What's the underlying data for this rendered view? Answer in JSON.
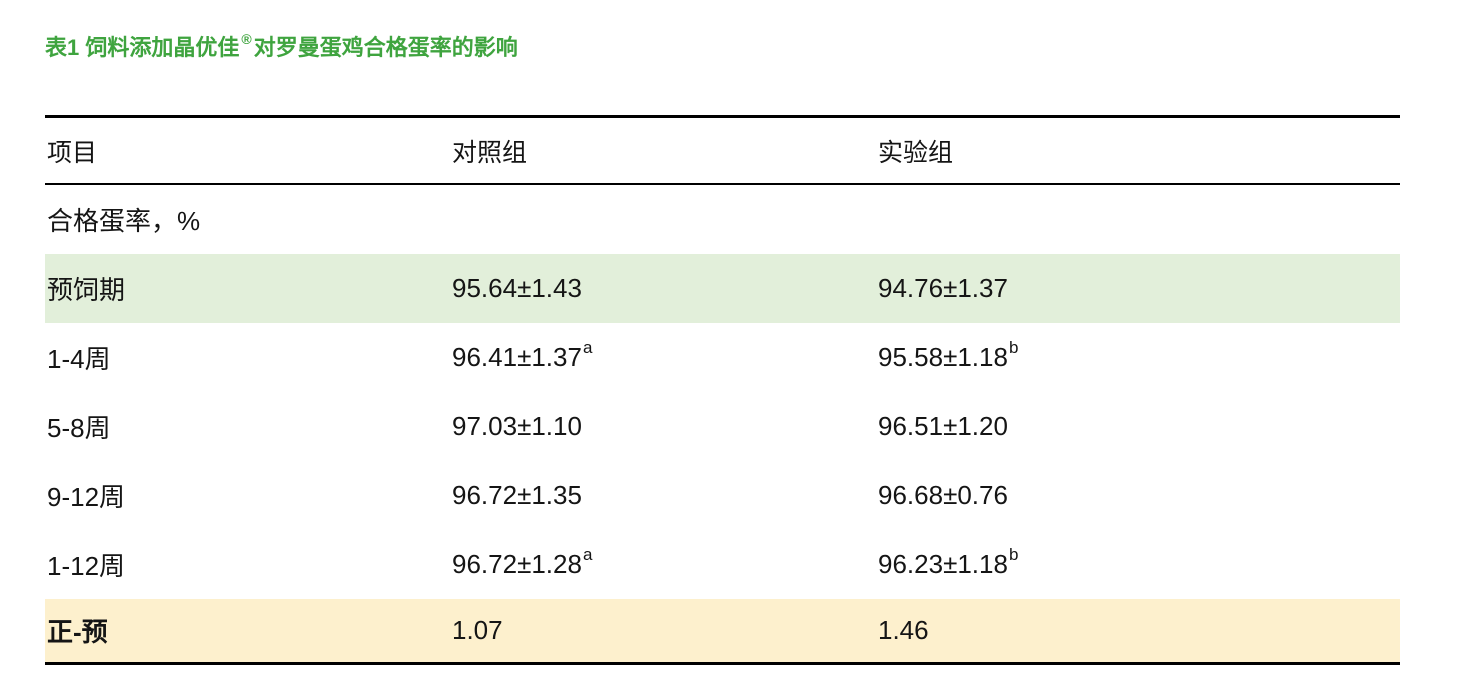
{
  "page": {
    "background": "#ffffff"
  },
  "title": {
    "text_before_mark": "表1 饲料添加晶优佳",
    "registered_mark": "®",
    "text_after_mark": "对罗曼蛋鸡合格蛋率的影响",
    "color": "#3fa43f"
  },
  "table": {
    "columns": [
      {
        "label": "项目"
      },
      {
        "label": "对照组"
      },
      {
        "label": "实验组"
      }
    ],
    "rows": [
      {
        "item": "合格蛋率，%",
        "control": "",
        "control_sup": "",
        "experiment": "",
        "experiment_sup": "",
        "highlight": "none"
      },
      {
        "item": "预饲期",
        "control": "95.64±1.43",
        "control_sup": "",
        "experiment": "94.76±1.37",
        "experiment_sup": "",
        "highlight": "green"
      },
      {
        "item": "1-4周",
        "control": "96.41±1.37",
        "control_sup": "a",
        "experiment": "95.58±1.18",
        "experiment_sup": "b",
        "highlight": "none"
      },
      {
        "item": "5-8周",
        "control": "97.03±1.10",
        "control_sup": "",
        "experiment": "96.51±1.20",
        "experiment_sup": "",
        "highlight": "none"
      },
      {
        "item": "9-12周",
        "control": "96.72±1.35",
        "control_sup": "",
        "experiment": "96.68±0.76",
        "experiment_sup": "",
        "highlight": "none"
      },
      {
        "item": "1-12周",
        "control": "96.72±1.28",
        "control_sup": "a",
        "experiment": "96.23±1.18",
        "experiment_sup": "b",
        "highlight": "none"
      },
      {
        "item": "正-预",
        "control": "1.07",
        "control_sup": "",
        "experiment": "1.46",
        "experiment_sup": "",
        "highlight": "yellow"
      }
    ],
    "colors": {
      "border": "#000000",
      "green_row_bg": "#e2efda",
      "yellow_row_bg": "#fdf0cd",
      "title_green": "#3fa43f"
    }
  }
}
